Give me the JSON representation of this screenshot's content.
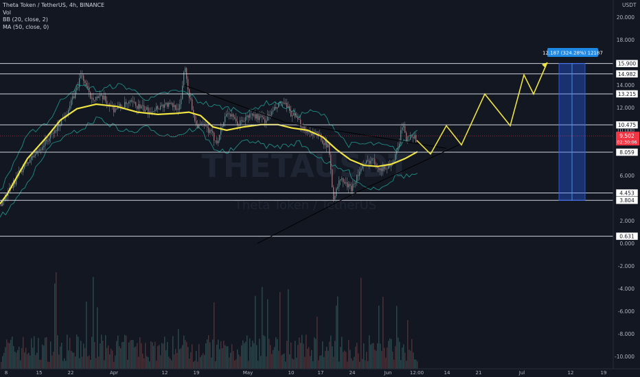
{
  "header": {
    "title": "Theta Token / TetherUS, 4h, BINANCE",
    "indicators": [
      "Vol",
      "BB (20, close, 2)",
      "MA (50, close, 0)"
    ]
  },
  "watermark": {
    "symbol": "THETAUSDT",
    "name": "Theta Token / TetherUS"
  },
  "colors": {
    "background": "#131722",
    "line": "#ffffff",
    "ma": "#f0e442",
    "bb": "#1e8e86",
    "up": "#26a69a",
    "down": "#ef5350",
    "target_box": "#2962ff",
    "current_price": "#f23645",
    "label_bg": "#1e88e5"
  },
  "chart_data": {
    "type": "candlestick",
    "symbol": "THETAUSDT",
    "timeframe": "4h",
    "exchange": "BINANCE",
    "currency": "USDT",
    "ylim": [
      -11,
      21
    ],
    "y_ticks": [
      "20.000",
      "18.000",
      "16.000",
      "14.000",
      "12.000",
      "10.000",
      "8.000",
      "6.000",
      "4.000",
      "2.000",
      "0.000",
      "-2.000",
      "-4.000",
      "-6.000",
      "-8.000",
      "-10.000"
    ],
    "x_ticks": [
      "8",
      "15",
      "22",
      "Apr",
      "12",
      "19",
      "May",
      "10",
      "17",
      "24",
      "Jun",
      "12:00",
      "14",
      "21",
      "Jul",
      "12",
      "19"
    ],
    "horizontal_levels": [
      "15.900",
      "14.982",
      "13.215",
      "10.475",
      "8.059",
      "4.453",
      "3.804",
      "0.631"
    ],
    "current_price": {
      "value": "9.502",
      "countdown": "02:30:06"
    },
    "target_label": "12.187 (324.28%) 12187",
    "ma_path": [
      [
        3.5,
        0
      ],
      [
        4.3,
        10
      ],
      [
        5.8,
        24
      ],
      [
        7.5,
        40
      ],
      [
        9.4,
        68
      ],
      [
        10.9,
        88
      ],
      [
        11.9,
        112
      ],
      [
        12.3,
        140
      ],
      [
        12.1,
        170
      ],
      [
        11.6,
        200
      ],
      [
        11.4,
        230
      ],
      [
        11.5,
        258
      ],
      [
        11.6,
        275
      ],
      [
        11.3,
        292
      ],
      [
        10.3,
        310
      ],
      [
        10.0,
        330
      ],
      [
        10.3,
        355
      ],
      [
        10.5,
        380
      ],
      [
        10.5,
        405
      ],
      [
        10.2,
        425
      ],
      [
        10.0,
        448
      ],
      [
        9.4,
        470
      ],
      [
        8.3,
        490
      ],
      [
        7.4,
        510
      ],
      [
        6.9,
        530
      ],
      [
        6.8,
        550
      ],
      [
        7.0,
        570
      ],
      [
        7.5,
        590
      ],
      [
        8.1,
        608
      ]
    ],
    "price_path": [
      [
        3.5,
        0
      ],
      [
        4.5,
        12
      ],
      [
        6.5,
        30
      ],
      [
        8.2,
        55
      ],
      [
        10.0,
        80
      ],
      [
        12.0,
        100
      ],
      [
        13.5,
        110
      ],
      [
        15.0,
        118
      ],
      [
        13.0,
        130
      ],
      [
        12.8,
        150
      ],
      [
        11.9,
        165
      ],
      [
        12.4,
        190
      ],
      [
        11.7,
        215
      ],
      [
        12.3,
        240
      ],
      [
        12.0,
        262
      ],
      [
        15.9,
        268
      ],
      [
        13.0,
        275
      ],
      [
        10.5,
        285
      ],
      [
        10.2,
        300
      ],
      [
        9.0,
        315
      ],
      [
        11.7,
        330
      ],
      [
        10.5,
        345
      ],
      [
        11.4,
        365
      ],
      [
        10.9,
        385
      ],
      [
        12.5,
        410
      ],
      [
        11.0,
        430
      ],
      [
        10.0,
        445
      ],
      [
        9.5,
        465
      ],
      [
        8.4,
        478
      ],
      [
        4.0,
        485
      ],
      [
        5.7,
        495
      ],
      [
        4.8,
        510
      ],
      [
        6.6,
        525
      ],
      [
        7.5,
        540
      ],
      [
        6.5,
        555
      ],
      [
        7.1,
        570
      ],
      [
        8.0,
        578
      ],
      [
        10.5,
        585
      ],
      [
        9.0,
        592
      ],
      [
        9.8,
        598
      ],
      [
        9.2,
        604
      ]
    ],
    "triangle_upper": [
      [
        14.0,
        268
      ],
      [
        10.7,
        415
      ],
      [
        8.4,
        650
      ]
    ],
    "triangle_lower": [
      [
        0.0,
        375
      ],
      [
        4.3,
        512
      ],
      [
        8.7,
        668
      ]
    ],
    "projection_path": [
      [
        9.1,
        607
      ],
      [
        7.9,
        627
      ],
      [
        10.4,
        650
      ],
      [
        8.7,
        672
      ],
      [
        13.2,
        706
      ],
      [
        10.4,
        743
      ],
      [
        14.9,
        763
      ],
      [
        13.2,
        777
      ],
      [
        16.0,
        797
      ]
    ],
    "target_box": {
      "x_start": 814,
      "x_end": 852,
      "y_top": 15.9,
      "y_bottom": 3.804
    },
    "volume_range": [
      -11,
      -2
    ]
  }
}
